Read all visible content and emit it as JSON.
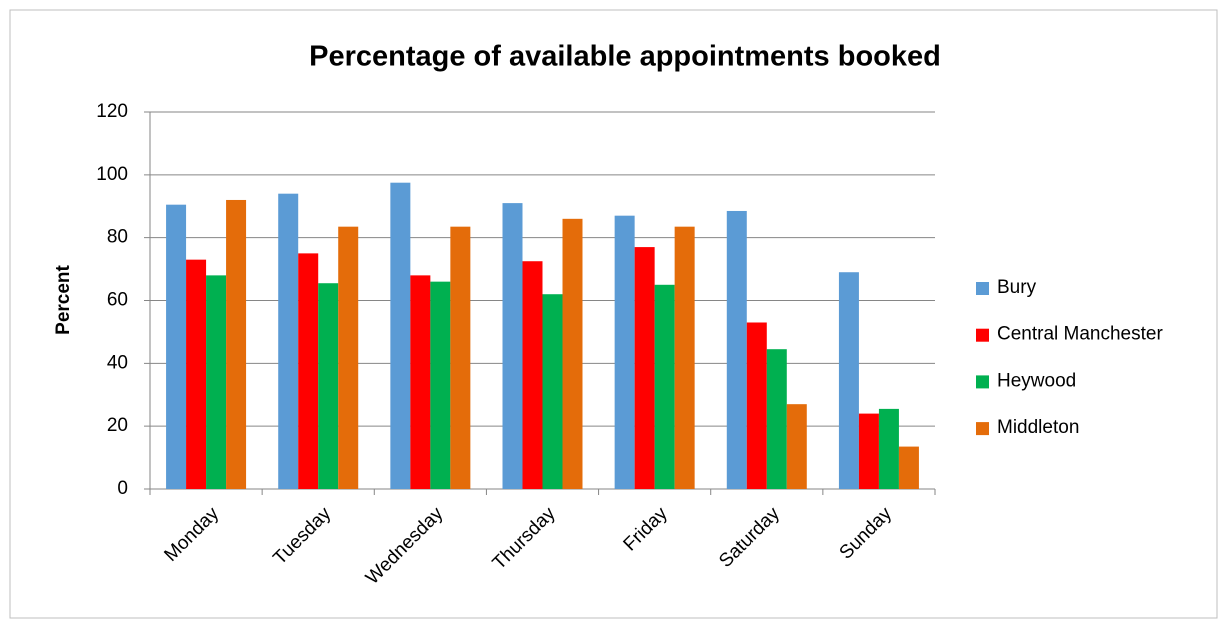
{
  "chart_data": {
    "type": "bar",
    "title": "Percentage of available appointments booked",
    "y_label": "Percent",
    "categories": [
      "Monday",
      "Tuesday",
      "Wednesday",
      "Thursday",
      "Friday",
      "Saturday",
      "Sunday"
    ],
    "series": [
      {
        "name": "Bury",
        "color": "#5b9bd5",
        "values": [
          90.5,
          94,
          97.5,
          91,
          87,
          88.5,
          69
        ]
      },
      {
        "name": "Central Manchester",
        "color": "#ff0000",
        "values": [
          73,
          75,
          68,
          72.5,
          77,
          53,
          24
        ]
      },
      {
        "name": "Heywood",
        "color": "#00b050",
        "values": [
          68,
          65.5,
          66,
          62,
          65,
          44.5,
          25.5
        ]
      },
      {
        "name": "Middleton",
        "color": "#e46c0a",
        "values": [
          92,
          83.5,
          83.5,
          86,
          83.5,
          27,
          13.5
        ]
      }
    ],
    "ylim": [
      0,
      120
    ],
    "yticks": [
      0,
      20,
      40,
      60,
      80,
      100,
      120
    ],
    "grid": true,
    "legend": "right"
  }
}
